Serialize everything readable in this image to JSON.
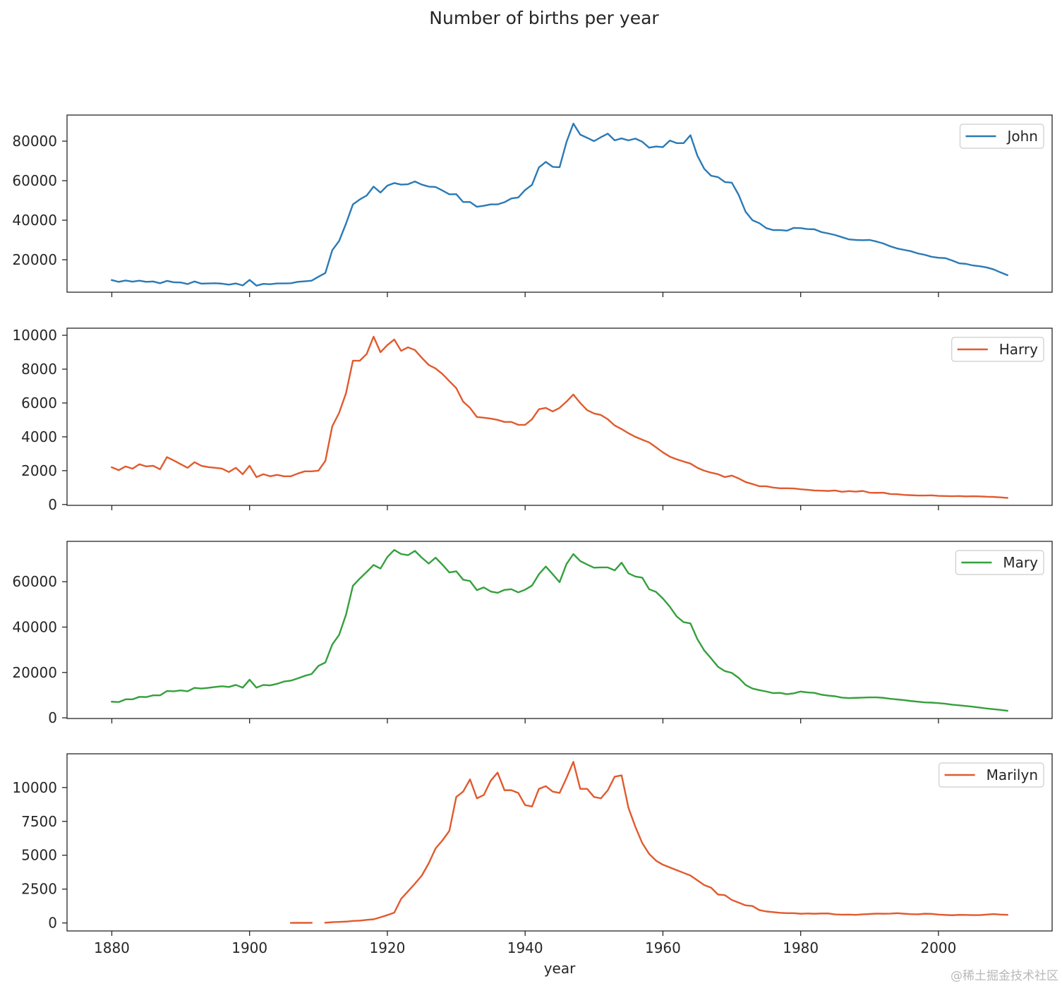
{
  "watermark": "@稀土掘金技术社区",
  "chart_data": {
    "type": "line",
    "title": "Number of births per year",
    "xlabel": "year",
    "legend": "upper right",
    "xlim": [
      1873.5,
      2016.5
    ],
    "xticks": [
      1880,
      1900,
      1920,
      1940,
      1960,
      1980,
      2000
    ],
    "xtick_labels": [
      "1880",
      "1900",
      "1920",
      "1940",
      "1960",
      "1980",
      "2000"
    ],
    "x": [
      1880,
      1881,
      1882,
      1883,
      1884,
      1885,
      1886,
      1887,
      1888,
      1889,
      1890,
      1891,
      1892,
      1893,
      1894,
      1895,
      1896,
      1897,
      1898,
      1899,
      1900,
      1901,
      1902,
      1903,
      1904,
      1905,
      1906,
      1907,
      1908,
      1909,
      1910,
      1911,
      1912,
      1913,
      1914,
      1915,
      1916,
      1917,
      1918,
      1919,
      1920,
      1921,
      1922,
      1923,
      1924,
      1925,
      1926,
      1927,
      1928,
      1929,
      1930,
      1931,
      1932,
      1933,
      1934,
      1935,
      1936,
      1937,
      1938,
      1939,
      1940,
      1941,
      1942,
      1943,
      1944,
      1945,
      1946,
      1947,
      1948,
      1949,
      1950,
      1951,
      1952,
      1953,
      1954,
      1955,
      1956,
      1957,
      1958,
      1959,
      1960,
      1961,
      1962,
      1963,
      1964,
      1965,
      1966,
      1967,
      1968,
      1969,
      1970,
      1971,
      1972,
      1973,
      1974,
      1975,
      1976,
      1977,
      1978,
      1979,
      1980,
      1981,
      1982,
      1983,
      1984,
      1985,
      1986,
      1987,
      1988,
      1989,
      1990,
      1991,
      1992,
      1993,
      1994,
      1995,
      1996,
      1997,
      1998,
      1999,
      2000,
      2001,
      2002,
      2003,
      2004,
      2005,
      2006,
      2007,
      2008,
      2009,
      2010
    ],
    "subplots": [
      {
        "name": "John",
        "color": "#2a7ab6",
        "ylim": [
          3570,
          93210
        ],
        "yticks": [
          20000,
          40000,
          60000,
          80000
        ],
        "ytick_labels": [
          "20000",
          "40000",
          "60000",
          "80000"
        ],
        "values": [
          9700,
          8800,
          9500,
          8900,
          9400,
          8800,
          9000,
          8100,
          9300,
          8600,
          8500,
          7700,
          9000,
          7900,
          8000,
          8100,
          7900,
          7400,
          8000,
          7000,
          9800,
          6900,
          7800,
          7600,
          8000,
          8000,
          8100,
          8800,
          9100,
          9400,
          11400,
          13300,
          24800,
          29500,
          38300,
          48000,
          50500,
          52500,
          57000,
          54000,
          57500,
          58800,
          58000,
          58200,
          59600,
          58000,
          57000,
          56800,
          55000,
          53100,
          53200,
          49200,
          49200,
          46800,
          47300,
          48000,
          48000,
          49100,
          51000,
          51500,
          55300,
          57900,
          66700,
          69500,
          67000,
          66800,
          79500,
          88900,
          83300,
          81700,
          80000,
          82000,
          83800,
          80400,
          81400,
          80400,
          81300,
          79700,
          76700,
          77300,
          77000,
          80300,
          79000,
          79000,
          83000,
          72700,
          66000,
          62500,
          61800,
          59300,
          59000,
          52800,
          44300,
          40000,
          38500,
          36000,
          35000,
          35000,
          34700,
          36100,
          36000,
          35500,
          35400,
          34000,
          33300,
          32500,
          31400,
          30300,
          30000,
          29900,
          30000,
          29200,
          28200,
          26800,
          25700,
          25000,
          24300,
          23200,
          22500,
          21500,
          21000,
          20800,
          19600,
          18200,
          17900,
          17100,
          16700,
          16100,
          15100,
          13600,
          12200
        ]
      },
      {
        "name": "Harry",
        "color": "#e15a2d",
        "ylim": [
          -50,
          10420
        ],
        "yticks": [
          0,
          2000,
          4000,
          6000,
          8000,
          10000
        ],
        "ytick_labels": [
          "0",
          "2000",
          "4000",
          "6000",
          "8000",
          "10000"
        ],
        "values": [
          2200,
          2030,
          2250,
          2120,
          2380,
          2250,
          2290,
          2080,
          2800,
          2600,
          2380,
          2170,
          2500,
          2290,
          2210,
          2170,
          2120,
          1920,
          2170,
          1790,
          2290,
          1620,
          1790,
          1670,
          1750,
          1670,
          1670,
          1830,
          1960,
          1960,
          2000,
          2580,
          4620,
          5420,
          6580,
          8500,
          8500,
          8900,
          9920,
          9000,
          9420,
          9750,
          9080,
          9290,
          9130,
          8670,
          8250,
          8040,
          7710,
          7290,
          6880,
          6080,
          5710,
          5170,
          5130,
          5080,
          5000,
          4880,
          4880,
          4710,
          4710,
          5040,
          5630,
          5710,
          5500,
          5710,
          6080,
          6500,
          6000,
          5580,
          5380,
          5290,
          5040,
          4670,
          4460,
          4210,
          4000,
          3830,
          3670,
          3380,
          3080,
          2830,
          2670,
          2540,
          2420,
          2170,
          2000,
          1880,
          1790,
          1620,
          1710,
          1540,
          1330,
          1210,
          1080,
          1080,
          1000,
          960,
          960,
          950,
          900,
          870,
          830,
          820,
          800,
          830,
          750,
          790,
          760,
          800,
          700,
          690,
          700,
          620,
          610,
          570,
          550,
          530,
          530,
          540,
          510,
          500,
          490,
          500,
          480,
          490,
          480,
          460,
          450,
          420,
          390
        ]
      },
      {
        "name": "Mary",
        "color": "#34a03c",
        "ylim": [
          -300,
          77800
        ],
        "yticks": [
          0,
          20000,
          40000,
          60000
        ],
        "ytick_labels": [
          "0",
          "20000",
          "40000",
          "60000"
        ],
        "values": [
          7100,
          6950,
          8150,
          8150,
          9250,
          9150,
          9900,
          9900,
          11800,
          11700,
          12100,
          11700,
          13200,
          12900,
          13200,
          13600,
          13900,
          13600,
          14500,
          13300,
          16800,
          13300,
          14500,
          14300,
          15000,
          16000,
          16400,
          17400,
          18500,
          19300,
          22900,
          24400,
          32300,
          36600,
          45500,
          58200,
          61400,
          64300,
          67400,
          65800,
          70900,
          74000,
          72200,
          71700,
          73600,
          70600,
          68000,
          70600,
          67500,
          64100,
          64600,
          60900,
          60300,
          56300,
          57500,
          55700,
          55100,
          56400,
          56700,
          55300,
          56500,
          58300,
          63300,
          66700,
          63300,
          59800,
          67800,
          72200,
          69100,
          67600,
          66200,
          66300,
          66300,
          65000,
          68400,
          63700,
          62300,
          61800,
          56700,
          55500,
          52600,
          49000,
          44700,
          42200,
          41600,
          34700,
          29700,
          26200,
          22500,
          20600,
          19800,
          17600,
          14500,
          12900,
          12200,
          11600,
          10900,
          11000,
          10400,
          10800,
          11600,
          11200,
          11000,
          10200,
          9800,
          9500,
          8900,
          8700,
          8800,
          8900,
          9000,
          9000,
          8800,
          8400,
          8100,
          7800,
          7400,
          7100,
          6800,
          6700,
          6500,
          6200,
          5800,
          5500,
          5200,
          4900,
          4500,
          4100,
          3800,
          3500,
          3100
        ]
      },
      {
        "name": "Marilyn",
        "color": "#e15a2d",
        "ylim": [
          -590,
          12490
        ],
        "yticks": [
          0,
          2500,
          5000,
          7500,
          10000
        ],
        "ytick_labels": [
          "0",
          "2500",
          "5000",
          "7500",
          "10000"
        ],
        "values": [
          null,
          null,
          null,
          null,
          null,
          null,
          null,
          null,
          null,
          null,
          null,
          null,
          null,
          null,
          null,
          null,
          null,
          null,
          null,
          null,
          null,
          null,
          null,
          null,
          null,
          null,
          8,
          10,
          10,
          12,
          null,
          20,
          60,
          80,
          100,
          150,
          170,
          230,
          270,
          420,
          580,
          760,
          1780,
          2340,
          2900,
          3500,
          4400,
          5500,
          6100,
          6800,
          9300,
          9700,
          10600,
          9200,
          9450,
          10500,
          11100,
          9800,
          9800,
          9600,
          8700,
          8600,
          9900,
          10100,
          9700,
          9600,
          10700,
          11900,
          9900,
          9900,
          9300,
          9200,
          9800,
          10800,
          10900,
          8500,
          7100,
          5900,
          5100,
          4600,
          4300,
          4100,
          3900,
          3700,
          3500,
          3150,
          2800,
          2600,
          2100,
          2050,
          1700,
          1500,
          1300,
          1250,
          950,
          850,
          800,
          750,
          720,
          720,
          680,
          700,
          680,
          700,
          700,
          630,
          610,
          620,
          600,
          640,
          660,
          690,
          680,
          690,
          720,
          680,
          650,
          640,
          680,
          670,
          620,
          590,
          570,
          600,
          590,
          580,
          580,
          620,
          660,
          620,
          600
        ]
      }
    ]
  }
}
